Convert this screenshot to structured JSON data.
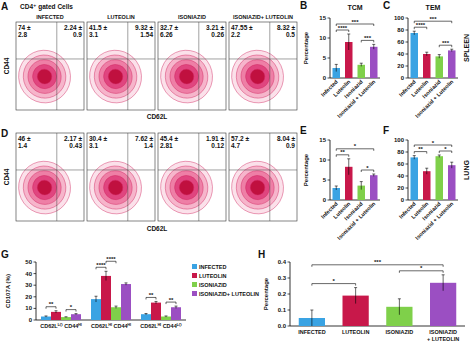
{
  "chart_data": [
    {
      "type": "flow_cytometry",
      "panel": "A",
      "title": "CD4⁺ gated Cells",
      "x_label": "CD62L",
      "y_label": "CD44",
      "plots": [
        {
          "title": "INFECTED",
          "upper_left": [
            "74 ±",
            "2.8"
          ],
          "upper_right": [
            "2.24 ±",
            "0.9"
          ]
        },
        {
          "title": "LUTEOLIN",
          "upper_left": [
            "41.5 ±",
            "3.1"
          ],
          "upper_right": [
            "9.32 ±",
            "1.54"
          ]
        },
        {
          "title": "ISONIAZID",
          "upper_left": [
            "32.7 ±",
            "6.26"
          ],
          "upper_right": [
            "3.21 ±",
            "0.26"
          ]
        },
        {
          "title": "ISONIAZID+ LUTEOLIN",
          "upper_left": [
            "47.55 ±",
            "2.2"
          ],
          "upper_right": [
            "8.32 ±",
            "0.5"
          ]
        }
      ]
    },
    {
      "type": "bar",
      "panel": "B",
      "title": "TCM",
      "y_label": "Percentage",
      "categories": [
        "Infected",
        "Luteolin",
        "Isoniazid",
        "Isoniazid + Luteolin"
      ],
      "values": [
        2.5,
        9,
        3.3,
        7.8
      ],
      "errors": [
        0.9,
        2,
        0.4,
        0.6
      ],
      "colors": [
        "#3aa3e3",
        "#c8184a",
        "#7fd04a",
        "#9b4fc2"
      ],
      "ylim": [
        0,
        15
      ],
      "yticks": [
        0,
        5,
        10,
        15
      ],
      "grid": false,
      "significance": [
        {
          "pair": [
            0,
            1
          ],
          "label": "****"
        },
        {
          "pair": [
            2,
            3
          ],
          "label": "***"
        },
        {
          "pair": [
            0,
            3
          ],
          "label": "***"
        }
      ]
    },
    {
      "type": "bar",
      "panel": "C",
      "title": "TEM",
      "annotation": "SPLEEN",
      "categories": [
        "Infected",
        "Luteolin",
        "Isoniazid",
        "Isoniazid + Luteolin"
      ],
      "values": [
        75,
        40,
        36,
        46
      ],
      "errors": [
        3,
        3,
        3,
        2
      ],
      "colors": [
        "#3aa3e3",
        "#c8184a",
        "#7fd04a",
        "#9b4fc2"
      ],
      "ylim": [
        0,
        100
      ],
      "yticks": [
        0,
        20,
        40,
        60,
        80,
        100
      ],
      "grid": false,
      "significance": [
        {
          "pair": [
            0,
            1
          ],
          "label": "****"
        },
        {
          "pair": [
            2,
            3
          ],
          "label": "***"
        },
        {
          "pair": [
            0,
            3
          ],
          "label": "***"
        }
      ]
    },
    {
      "type": "flow_cytometry",
      "panel": "D",
      "x_label": "CD62L",
      "y_label": "CD44",
      "plots": [
        {
          "upper_left": [
            "46 ±",
            "1.4"
          ],
          "upper_right": [
            "2.17 ±",
            "0.43"
          ]
        },
        {
          "upper_left": [
            "30.4 ±",
            "3.1"
          ],
          "upper_right": [
            "7.62 ±",
            "1.4"
          ]
        },
        {
          "upper_left": [
            "45.4 ±",
            "2.81"
          ],
          "upper_right": [
            "1.91 ±",
            "0.12"
          ]
        },
        {
          "upper_left": [
            "57.2 ±",
            "4.7"
          ],
          "upper_right": [
            "8.04 ±",
            "0.9"
          ]
        }
      ]
    },
    {
      "type": "bar",
      "panel": "E",
      "y_label": "Percentage",
      "categories": [
        "Infected",
        "Luteolin",
        "Isoniazid",
        "Isoniazid + Luteolin"
      ],
      "values": [
        3,
        8.3,
        3.6,
        6.2
      ],
      "errors": [
        0.5,
        2,
        1,
        0.3
      ],
      "colors": [
        "#3aa3e3",
        "#c8184a",
        "#7fd04a",
        "#9b4fc2"
      ],
      "ylim": [
        0,
        15
      ],
      "yticks": [
        0,
        5,
        10,
        15
      ],
      "grid": false,
      "significance": [
        {
          "pair": [
            0,
            1
          ],
          "label": "**"
        },
        {
          "pair": [
            2,
            3
          ],
          "label": "*"
        },
        {
          "pair": [
            0,
            3
          ],
          "label": "*"
        }
      ]
    },
    {
      "type": "bar",
      "panel": "F",
      "annotation": "LUNG",
      "categories": [
        "Infected",
        "Luteolin",
        "Isoniazid",
        "Isoniazid + Luteolin"
      ],
      "values": [
        71,
        48,
        73,
        58
      ],
      "errors": [
        3,
        5,
        2,
        5
      ],
      "colors": [
        "#3aa3e3",
        "#c8184a",
        "#7fd04a",
        "#9b4fc2"
      ],
      "ylim": [
        0,
        100
      ],
      "yticks": [
        0,
        20,
        40,
        60,
        80,
        100
      ],
      "grid": false,
      "significance": [
        {
          "pair": [
            0,
            1
          ],
          "label": "**"
        },
        {
          "pair": [
            2,
            3
          ],
          "label": "*"
        },
        {
          "pair": [
            0,
            3
          ],
          "label": "*"
        }
      ]
    },
    {
      "type": "bar",
      "panel": "G",
      "y_label": "CD107A (%)",
      "categories": [
        "CD62Lᴸᴼ CD44ᴴᴵ",
        "CD62Lᴴᴵ CD44ᴴᴵ",
        "CD62Lᴴᴵ CD44ᴸᴼ"
      ],
      "series": [
        {
          "name": "INFECTED",
          "color": "#3aa3e3",
          "values": [
            3,
            18,
            5
          ],
          "errors": [
            0.5,
            2.5,
            0.6
          ]
        },
        {
          "name": "LUTEOLIN",
          "color": "#c8184a",
          "values": [
            7,
            38,
            15
          ],
          "errors": [
            1,
            4,
            1
          ]
        },
        {
          "name": "ISONIAZID",
          "color": "#7fd04a",
          "values": [
            2.5,
            11,
            3
          ],
          "errors": [
            0.3,
            1,
            0.5
          ]
        },
        {
          "name": "ISONIAZID+ LUTEOLIN",
          "color": "#9b4fc2",
          "values": [
            5,
            31,
            11
          ],
          "errors": [
            0.5,
            1,
            1
          ]
        }
      ],
      "ylim": [
        0,
        50
      ],
      "yticks": [
        0,
        10,
        20,
        30,
        40,
        50
      ],
      "grid": false,
      "legend": "right",
      "significance": [
        [
          {
            "pair": [
              0,
              1
            ],
            "label": "**"
          },
          {
            "pair": [
              2,
              3
            ],
            "label": "*"
          }
        ],
        [
          {
            "pair": [
              0,
              1
            ],
            "label": "****"
          },
          {
            "pair": [
              1,
              2
            ],
            "label": "****"
          }
        ],
        [
          {
            "pair": [
              0,
              1
            ],
            "label": "**"
          },
          {
            "pair": [
              2,
              3
            ],
            "label": "**"
          }
        ]
      ]
    },
    {
      "type": "bar",
      "panel": "H",
      "y_label": "Percentage",
      "categories": [
        "INFECTED",
        "LUTEOLIN",
        "ISONIAZID",
        "ISONIAZID + LUTEOLIN"
      ],
      "values": [
        0.05,
        0.19,
        0.12,
        0.27
      ],
      "errors": [
        0.05,
        0.05,
        0.05,
        0.05
      ],
      "colors": [
        "#3aa3e3",
        "#c8184a",
        "#7fd04a",
        "#9b4fc2"
      ],
      "ylim": [
        0,
        0.4
      ],
      "yticks": [
        {
          "value": 0,
          "label": "0.0"
        },
        0.1,
        0.2,
        0.3,
        0.4
      ],
      "grid": false,
      "significance": [
        {
          "pair": [
            0,
            1
          ],
          "label": "*"
        },
        {
          "pair": [
            2,
            3
          ],
          "label": "*"
        },
        {
          "pair": [
            0,
            3
          ],
          "label": "***"
        }
      ]
    }
  ]
}
